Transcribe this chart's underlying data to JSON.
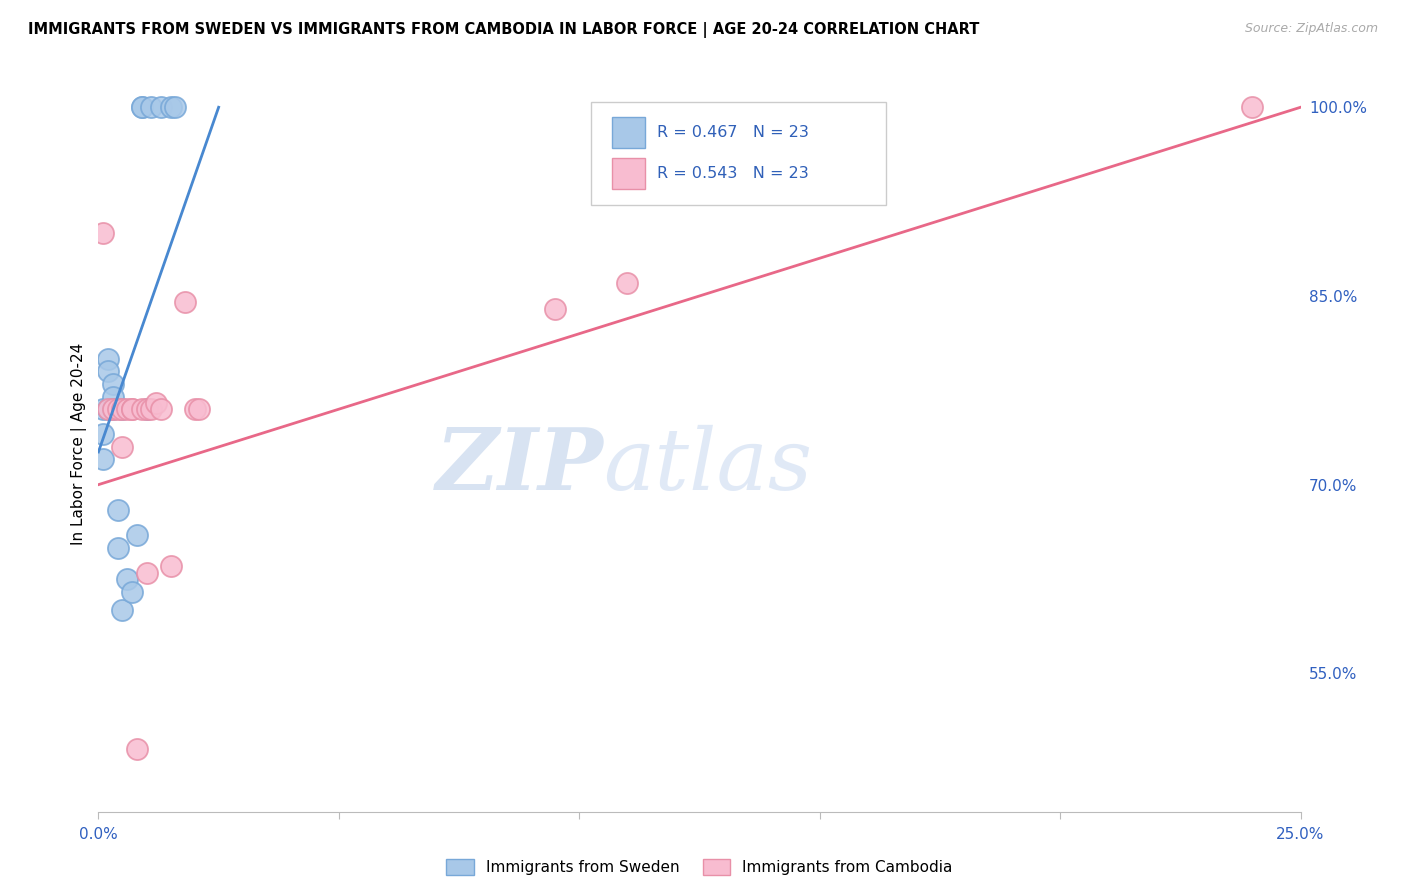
{
  "title": "IMMIGRANTS FROM SWEDEN VS IMMIGRANTS FROM CAMBODIA IN LABOR FORCE | AGE 20-24 CORRELATION CHART",
  "source": "Source: ZipAtlas.com",
  "ylabel": "In Labor Force | Age 20-24",
  "x_min": 0.0,
  "x_max": 0.25,
  "y_min": 0.44,
  "y_max": 1.025,
  "x_ticks": [
    0.0,
    0.05,
    0.1,
    0.15,
    0.2,
    0.25
  ],
  "x_tick_labels": [
    "0.0%",
    "",
    "",
    "",
    "",
    "25.0%"
  ],
  "y_ticks": [
    0.55,
    0.7,
    0.85,
    1.0
  ],
  "y_tick_labels": [
    "55.0%",
    "70.0%",
    "85.0%",
    "100.0%"
  ],
  "sweden_color": "#a8c8e8",
  "sweden_edge_color": "#78a8d8",
  "cambodia_color": "#f8bcd0",
  "cambodia_edge_color": "#e890a8",
  "sweden_line_color": "#4888d0",
  "cambodia_line_color": "#e86888",
  "sweden_R": 0.467,
  "sweden_N": 23,
  "cambodia_R": 0.543,
  "cambodia_N": 23,
  "legend_R_color": "#3060b8",
  "watermark_color": "#d0dff5",
  "sweden_line_x0": 0.0,
  "sweden_line_y0": 0.726,
  "sweden_line_x1": 0.025,
  "sweden_line_y1": 1.0,
  "cambodia_line_x0": 0.0,
  "cambodia_line_y0": 0.7,
  "cambodia_line_x1": 0.25,
  "cambodia_line_y1": 1.0,
  "sweden_x": [
    0.001,
    0.001,
    0.001,
    0.002,
    0.002,
    0.002,
    0.003,
    0.003,
    0.003,
    0.004,
    0.004,
    0.005,
    0.005,
    0.006,
    0.007,
    0.008,
    0.009,
    0.009,
    0.01,
    0.011,
    0.013,
    0.015,
    0.016
  ],
  "sweden_y": [
    0.76,
    0.74,
    0.72,
    0.8,
    0.79,
    0.76,
    0.78,
    0.77,
    0.76,
    0.68,
    0.65,
    0.76,
    0.6,
    0.625,
    0.615,
    0.66,
    1.0,
    1.0,
    0.76,
    1.0,
    1.0,
    1.0,
    1.0
  ],
  "cambodia_x": [
    0.001,
    0.002,
    0.003,
    0.004,
    0.005,
    0.005,
    0.006,
    0.007,
    0.007,
    0.008,
    0.009,
    0.01,
    0.01,
    0.011,
    0.012,
    0.013,
    0.015,
    0.018,
    0.02,
    0.021,
    0.095,
    0.11,
    0.24
  ],
  "cambodia_y": [
    0.9,
    0.76,
    0.76,
    0.76,
    0.76,
    0.73,
    0.76,
    0.76,
    0.76,
    0.49,
    0.76,
    0.76,
    0.63,
    0.76,
    0.765,
    0.76,
    0.635,
    0.845,
    0.76,
    0.76,
    0.84,
    0.86,
    1.0
  ]
}
